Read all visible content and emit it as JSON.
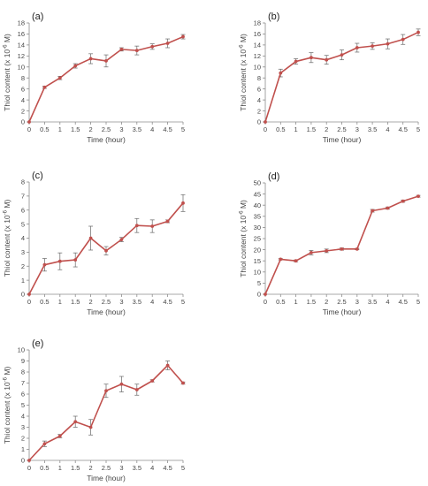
{
  "chart_data": [
    {
      "type": "line",
      "panel_label": "(a)",
      "xlabel": "Time (hour)",
      "ylabel": "Thiol content (x 10",
      "ylabel_exp": "-6",
      "ylabel_unit": " M)",
      "xlim": [
        0,
        5
      ],
      "ylim": [
        0,
        18
      ],
      "x_ticks": [
        "0",
        "0.5",
        "1",
        "1.5",
        "2",
        "2.5",
        "3",
        "3.5",
        "4",
        "4.5",
        "5"
      ],
      "y_ticks": [
        "0",
        "2",
        "4",
        "6",
        "8",
        "10",
        "12",
        "14",
        "16",
        "18"
      ],
      "grid": false,
      "x": [
        0,
        0.5,
        1,
        1.5,
        2,
        2.5,
        3,
        3.5,
        4,
        4.5,
        5
      ],
      "y": [
        0,
        6.3,
        8.0,
        10.2,
        11.5,
        11.1,
        13.2,
        13.0,
        13.7,
        14.3,
        15.5
      ],
      "err": [
        0,
        0.2,
        0.3,
        0.4,
        0.9,
        1.1,
        0.3,
        0.8,
        0.5,
        0.8,
        0.4
      ]
    },
    {
      "type": "line",
      "panel_label": "(b)",
      "xlabel": "Time (hour)",
      "ylabel": "Thiol content (x 10",
      "ylabel_exp": "-6",
      "ylabel_unit": " M)",
      "xlim": [
        0,
        5
      ],
      "ylim": [
        0,
        18
      ],
      "x_ticks": [
        "0",
        "0.5",
        "1",
        "1.5",
        "2",
        "2.5",
        "3",
        "3.5",
        "4",
        "4.5",
        "5"
      ],
      "y_ticks": [
        "0",
        "2",
        "4",
        "6",
        "8",
        "10",
        "12",
        "14",
        "16",
        "18"
      ],
      "grid": false,
      "x": [
        0,
        0.5,
        1,
        1.5,
        2,
        2.5,
        3,
        3.5,
        4,
        4.5,
        5
      ],
      "y": [
        0,
        8.9,
        11.0,
        11.7,
        11.3,
        12.2,
        13.5,
        13.8,
        14.2,
        15.0,
        16.3
      ],
      "err": [
        0,
        0.7,
        0.5,
        0.9,
        0.8,
        0.9,
        0.8,
        0.6,
        0.9,
        0.9,
        0.6
      ]
    },
    {
      "type": "line",
      "panel_label": "(c)",
      "xlabel": "Time (hour)",
      "ylabel": "Thiol content (x 10",
      "ylabel_exp": "-6",
      "ylabel_unit": " M)",
      "xlim": [
        0,
        5
      ],
      "ylim": [
        0,
        8
      ],
      "x_ticks": [
        "0",
        "0.5",
        "1",
        "1.5",
        "2",
        "2.5",
        "3",
        "3.5",
        "4",
        "4.5",
        "5"
      ],
      "y_ticks": [
        "0",
        "1",
        "2",
        "3",
        "4",
        "5",
        "6",
        "7",
        "8"
      ],
      "grid": false,
      "x": [
        0,
        0.5,
        1,
        1.5,
        2,
        2.5,
        3,
        3.5,
        4,
        4.5,
        5
      ],
      "y": [
        0,
        2.1,
        2.35,
        2.45,
        4.0,
        3.1,
        3.9,
        4.9,
        4.85,
        5.2,
        6.5
      ],
      "err": [
        0,
        0.45,
        0.6,
        0.5,
        0.85,
        0.3,
        0.15,
        0.5,
        0.45,
        0.1,
        0.6
      ]
    },
    {
      "type": "line",
      "panel_label": "(d)",
      "xlabel": "Time (hour)",
      "ylabel": "Thiol content (x 10",
      "ylabel_exp": "-6",
      "ylabel_unit": " M)",
      "xlim": [
        0,
        5
      ],
      "ylim": [
        0,
        50
      ],
      "x_ticks": [
        "0",
        "0.5",
        "1",
        "1.5",
        "2",
        "2.5",
        "3",
        "3.5",
        "4",
        "4.5",
        "5"
      ],
      "y_ticks": [
        "0",
        "5",
        "10",
        "15",
        "20",
        "25",
        "30",
        "35",
        "40",
        "45",
        "50"
      ],
      "grid": false,
      "x": [
        0,
        0.5,
        1,
        1.5,
        2,
        2.5,
        3,
        3.5,
        4,
        4.5,
        5
      ],
      "y": [
        0,
        15.7,
        15.0,
        18.7,
        19.5,
        20.3,
        20.3,
        37.5,
        38.7,
        41.8,
        44.0
      ],
      "err": [
        0,
        0.3,
        0.4,
        1.0,
        0.8,
        0.5,
        0.3,
        0.6,
        0.5,
        0.5,
        0.4
      ]
    },
    {
      "type": "line",
      "panel_label": "(e)",
      "xlabel": "Time (hour)",
      "ylabel": "Thiol content (x 10",
      "ylabel_exp": "-6",
      "ylabel_unit": " M)",
      "xlim": [
        0,
        5
      ],
      "ylim": [
        0,
        10
      ],
      "x_ticks": [
        "0",
        "0.5",
        "1",
        "1.5",
        "2",
        "2.5",
        "3",
        "3.5",
        "4",
        "4.5",
        "5"
      ],
      "y_ticks": [
        "0",
        "1",
        "2",
        "3",
        "4",
        "5",
        "6",
        "7",
        "8",
        "9",
        "10"
      ],
      "grid": false,
      "x": [
        0,
        0.5,
        1,
        1.5,
        2,
        2.5,
        3,
        3.5,
        4,
        4.5,
        5
      ],
      "y": [
        0,
        1.5,
        2.2,
        3.5,
        3.0,
        6.3,
        6.9,
        6.4,
        7.2,
        8.6,
        7.0
      ],
      "err": [
        0,
        0.25,
        0.15,
        0.5,
        0.7,
        0.6,
        0.7,
        0.5,
        0.1,
        0.4,
        0.1
      ]
    }
  ],
  "colors": {
    "series": "#c0504d",
    "axis": "#8c8c8c",
    "error_bar": "#666666",
    "text": "#444444"
  }
}
